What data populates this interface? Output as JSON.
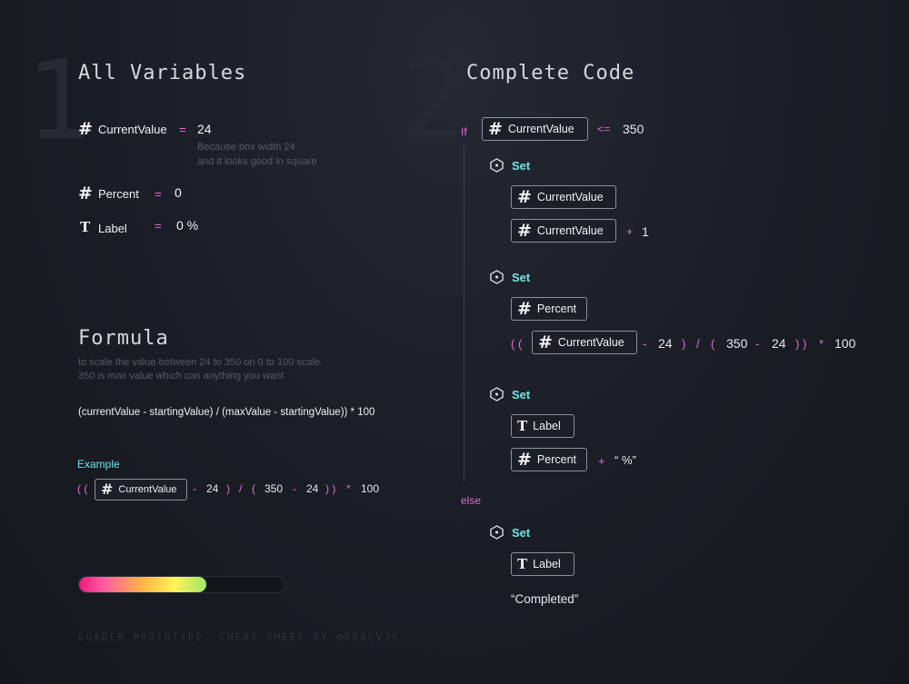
{
  "left": {
    "section_number": "1",
    "title": "All Variables",
    "variables": [
      {
        "icon": "hash-icon",
        "name": "CurrentValue",
        "op": "=",
        "value": "24",
        "note": [
          "Because box width 24",
          "and it looks good in square"
        ]
      },
      {
        "icon": "hash-icon",
        "name": "Percent",
        "op": "=",
        "value": "0"
      },
      {
        "icon": "text-type-icon",
        "name": "Label",
        "op": "=",
        "value": "0 %"
      }
    ],
    "formula": {
      "title": "Formula",
      "desc": [
        "to scale the value between 24 to 350 on 0 to 100 scale.",
        "350 is max value which can anything you want"
      ],
      "expression": "(currentValue - startingValue) / (maxValue - startingValue)) * 100"
    },
    "example": {
      "label": "Example",
      "open": "( (",
      "chip": "CurrentValue",
      "minus1": "-",
      "n1": "24",
      "paren_close": ")",
      "slash": "/",
      "paren_open": "(",
      "n2": "350",
      "minus2": "-",
      "n3": "24",
      "close": ") )",
      "times": "*",
      "n4": "100"
    },
    "progress": {
      "fraction": 0.62
    },
    "footer": "LOADER PROTOTYPE, CHEAT SHEET BY @REALVJY"
  },
  "right": {
    "section_number": "2",
    "title": "Complete Code",
    "if_kw": "If",
    "if_chip": "CurrentValue",
    "if_op": "<=",
    "if_val": "350",
    "set_kw": "Set",
    "block1": {
      "target": "CurrentValue",
      "expr_chip": "CurrentValue",
      "plus": "+",
      "n": "1"
    },
    "block2": {
      "target": "Percent",
      "open": "( (",
      "chip": "CurrentValue",
      "minus1": "-",
      "n1": "24",
      "close1": ")",
      "slash": "/",
      "open2": "(",
      "n2": "350",
      "minus2": "-",
      "n3": "24",
      "close2": ") )",
      "times": "*",
      "n4": "100"
    },
    "block3": {
      "target": "Label",
      "expr_chip": "Percent",
      "plus": "+",
      "str": "“ %”"
    },
    "else_kw": "else",
    "block4": {
      "target": "Label",
      "str": "“Completed”"
    }
  },
  "colors": {
    "accent_pink": "#ea6bd6",
    "accent_cyan": "#6fe4e0",
    "background": "#1b1e27"
  }
}
